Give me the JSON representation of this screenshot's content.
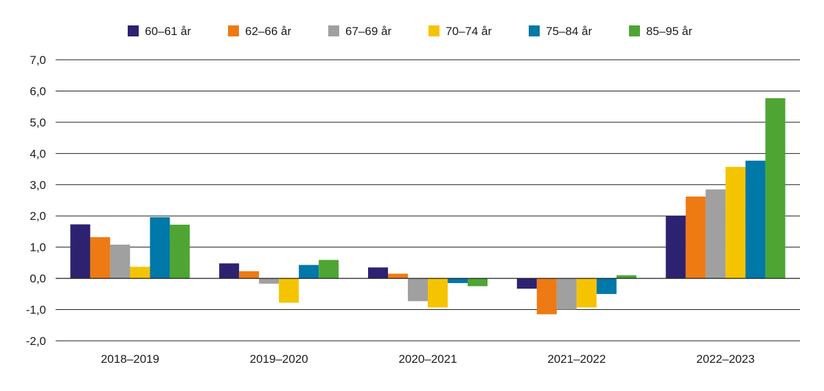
{
  "chart_data": {
    "type": "bar",
    "title": "",
    "xlabel": "",
    "ylabel": "",
    "ylim": [
      -2.0,
      7.0
    ],
    "ytick_step": 1.0,
    "ytick_labels": [
      "-2,0",
      "-1,0",
      "0,0",
      "1,0",
      "2,0",
      "3,0",
      "4,0",
      "5,0",
      "6,0",
      "7,0"
    ],
    "grid": true,
    "legend_position": "top",
    "categories": [
      "2018–2019",
      "2019–2020",
      "2020–2021",
      "2021–2022",
      "2022–2023"
    ],
    "series": [
      {
        "name": "60–61 år",
        "color": "#2d2270",
        "values": [
          1.73,
          0.48,
          0.35,
          -0.33,
          2.0
        ]
      },
      {
        "name": "62–66 år",
        "color": "#ee7a14",
        "values": [
          1.32,
          0.23,
          0.15,
          -1.15,
          2.62
        ]
      },
      {
        "name": "67–69 år",
        "color": "#a0a0a0",
        "values": [
          1.08,
          -0.17,
          -0.73,
          -1.0,
          2.85
        ]
      },
      {
        "name": "70–74 år",
        "color": "#f5c400",
        "values": [
          0.37,
          -0.78,
          -0.93,
          -0.93,
          3.57
        ]
      },
      {
        "name": "75–84 år",
        "color": "#0078a8",
        "values": [
          1.96,
          0.43,
          -0.15,
          -0.5,
          3.77
        ]
      },
      {
        "name": "85–95 år",
        "color": "#4ea533",
        "values": [
          1.72,
          0.59,
          -0.25,
          0.1,
          5.77
        ]
      }
    ]
  }
}
